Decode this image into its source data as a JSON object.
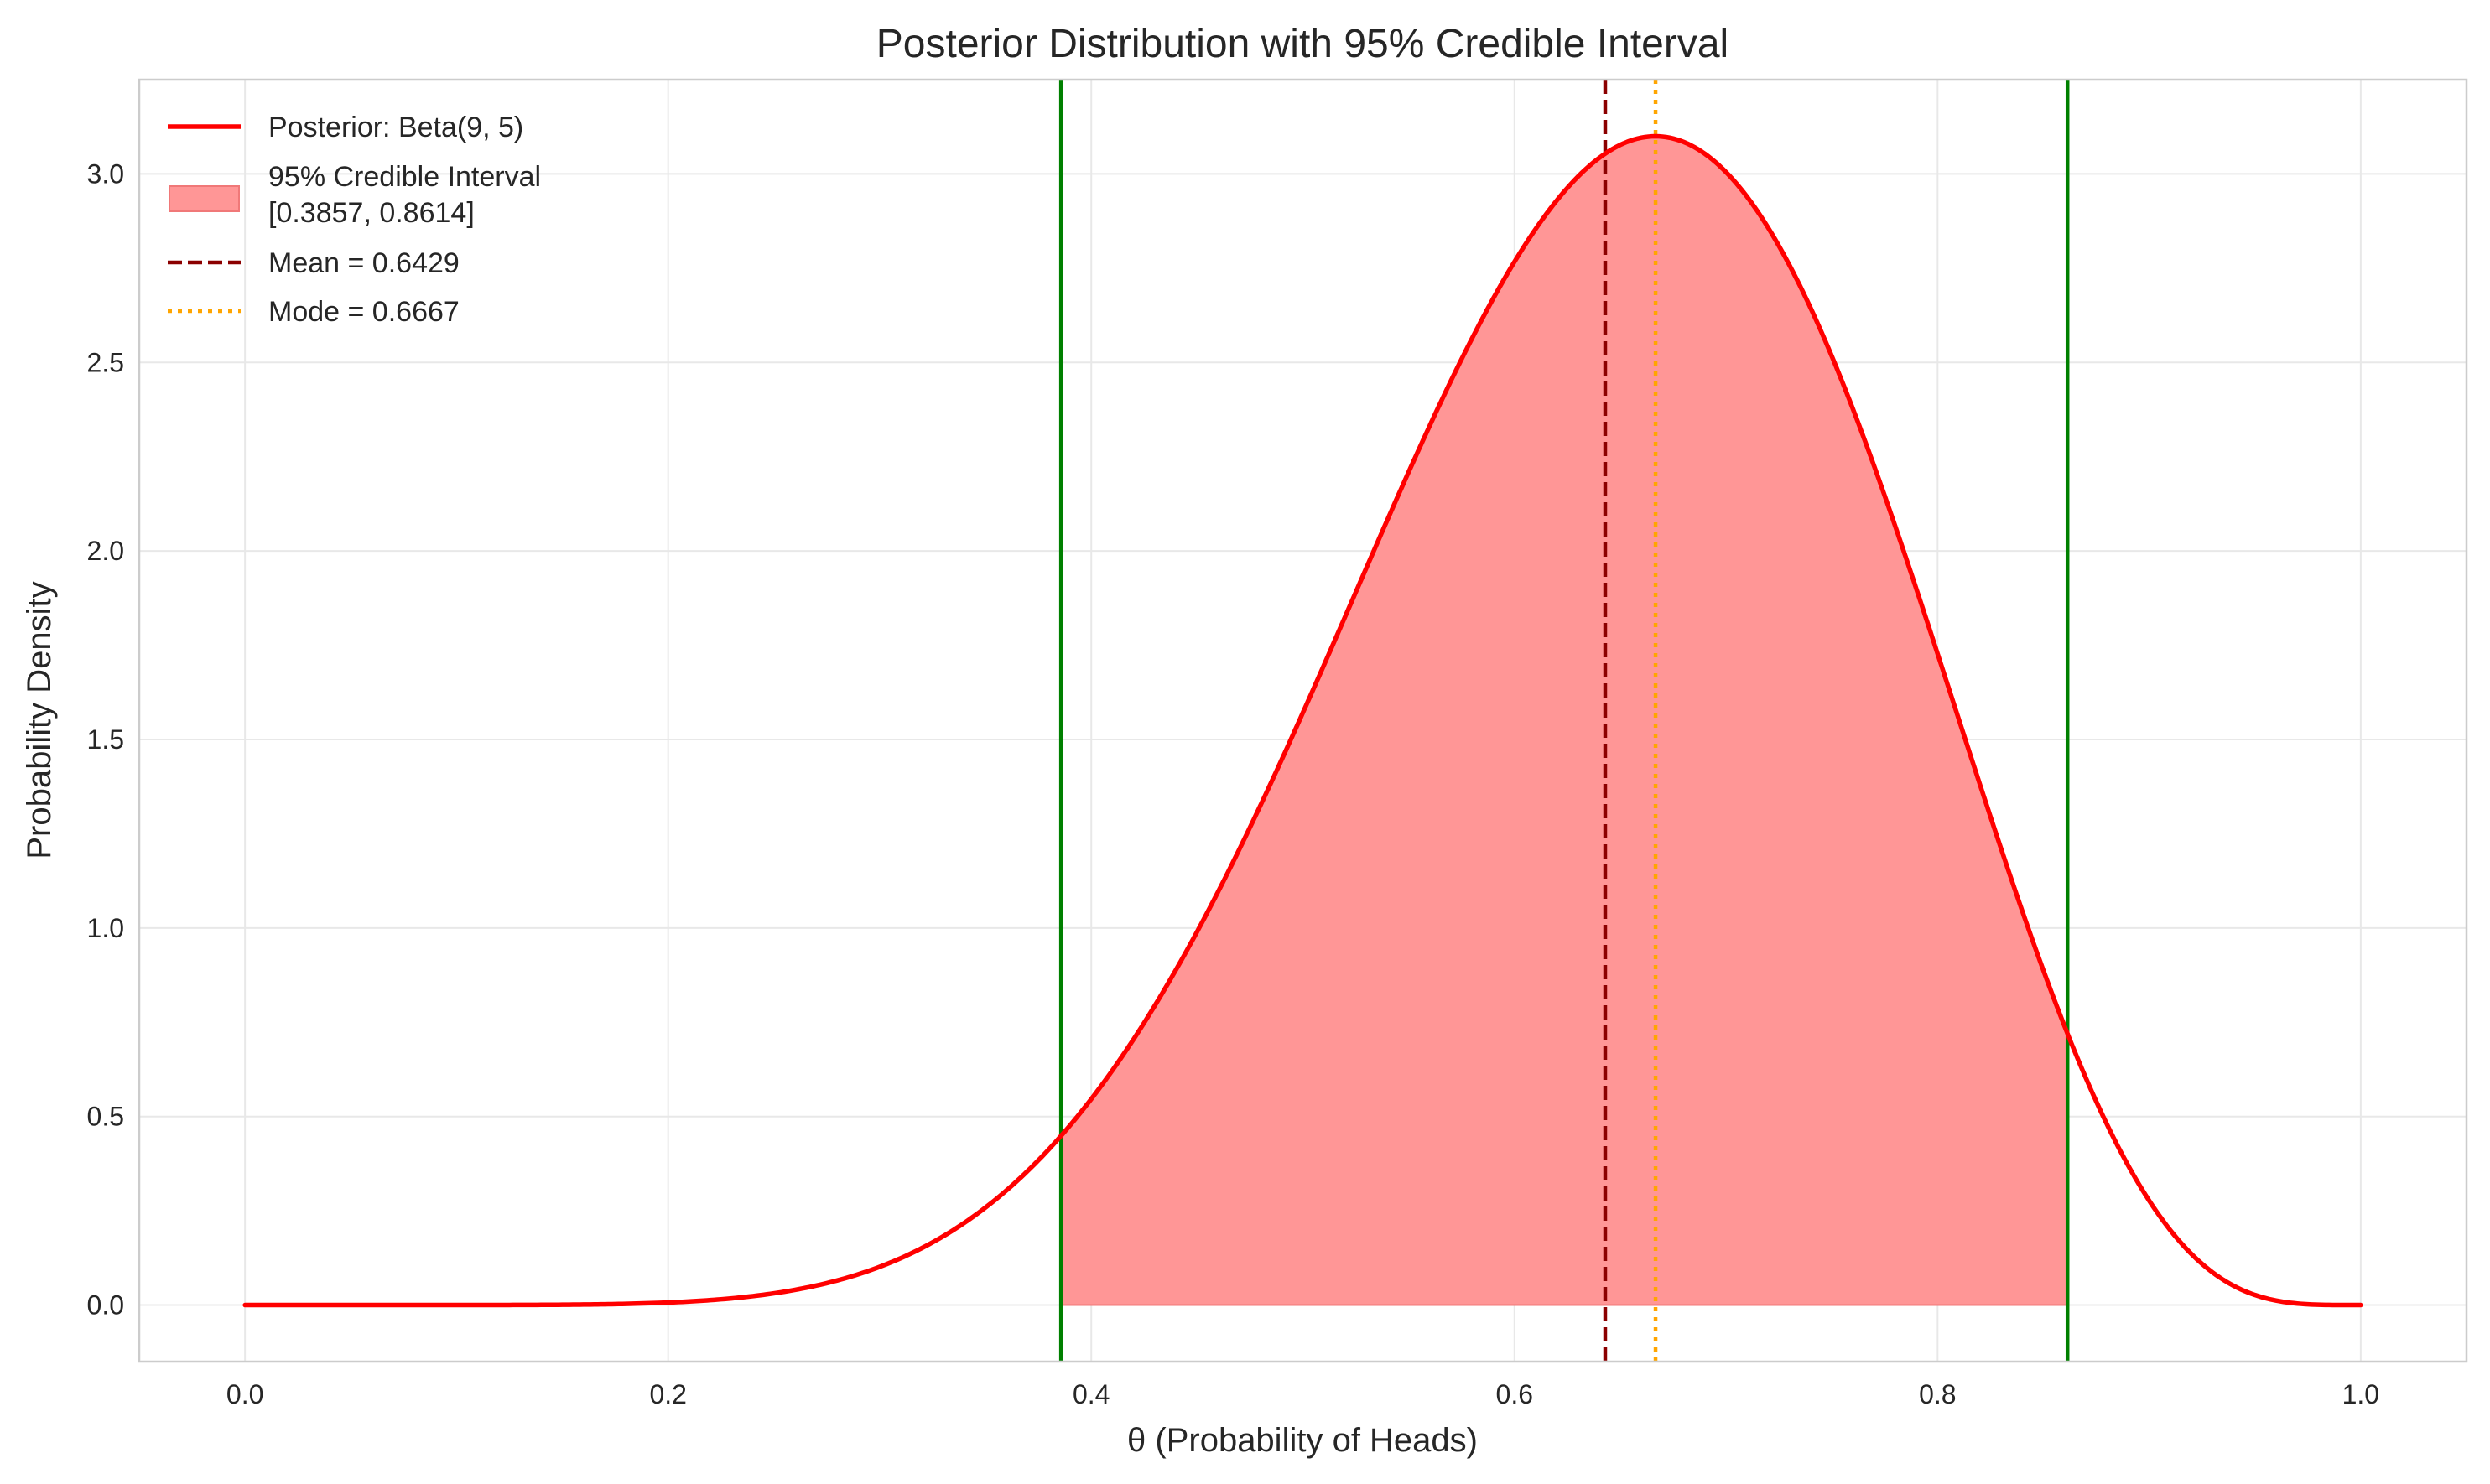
{
  "chart_data": {
    "type": "line",
    "title": "Posterior Distribution with 95% Credible Interval",
    "xlabel": "θ (Probability of Heads)",
    "ylabel": "Probability Density",
    "xlim": [
      -0.05,
      1.05
    ],
    "ylim": [
      -0.15,
      3.25
    ],
    "xticks": [
      0.0,
      0.2,
      0.4,
      0.6,
      0.8,
      1.0
    ],
    "xtick_labels": [
      "0.0",
      "0.2",
      "0.4",
      "0.6",
      "0.8",
      "1.0"
    ],
    "yticks": [
      0.0,
      0.5,
      1.0,
      1.5,
      2.0,
      2.5,
      3.0
    ],
    "ytick_labels": [
      "0.0",
      "0.5",
      "1.0",
      "1.5",
      "2.0",
      "2.5",
      "3.0"
    ],
    "grid": true,
    "legend_position": "top-left",
    "distribution": {
      "family": "beta",
      "alpha": 9,
      "beta": 5
    },
    "series": [
      {
        "name": "Posterior: Beta(9, 5)",
        "kind": "line",
        "color": "#ff0000"
      }
    ],
    "credible_interval": {
      "legend_line1": "95% Credible Interval",
      "legend_line2": "[0.3857, 0.8614]",
      "lower": 0.3857,
      "upper": 0.8614,
      "fill_color": "#ff9696",
      "edge_color": "#f07878",
      "bound_line_color": "#008000"
    },
    "mean": {
      "label": "Mean = 0.6429",
      "value": 0.6429,
      "color": "#8b0000",
      "style": "dashed"
    },
    "mode": {
      "label": "Mode = 0.6667",
      "value": 0.6667,
      "color": "#ffa500",
      "style": "dotted"
    }
  }
}
